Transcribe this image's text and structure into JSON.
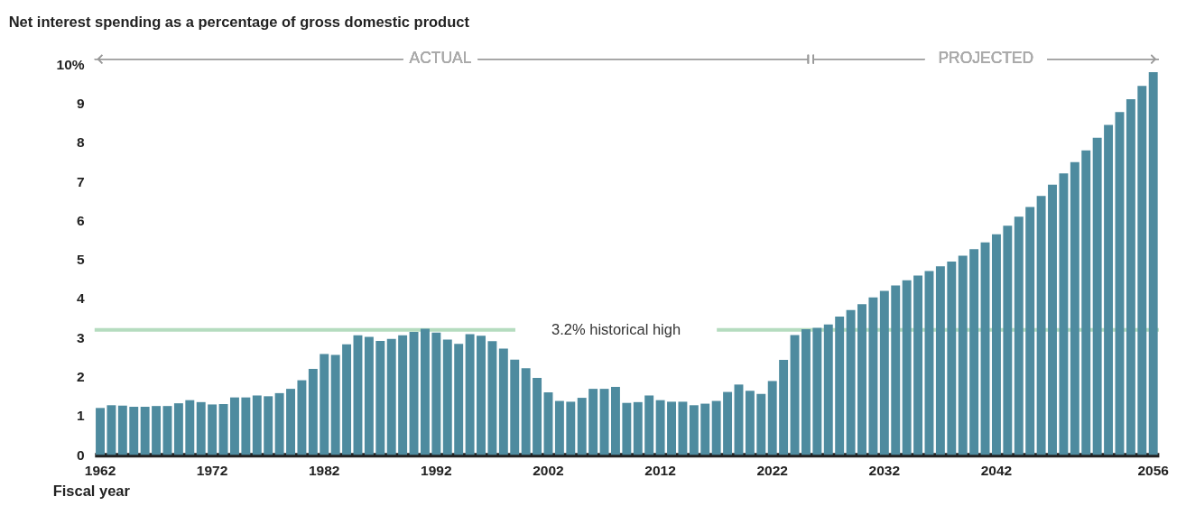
{
  "chart_data": {
    "type": "bar",
    "title": "Net interest spending as a percentage of gross domestic product",
    "xlabel": "Fiscal year",
    "categories": [
      "1962",
      null,
      null,
      null,
      null,
      null,
      null,
      null,
      null,
      null,
      "1972",
      null,
      null,
      null,
      null,
      null,
      null,
      null,
      null,
      null,
      "1982",
      null,
      null,
      null,
      null,
      null,
      null,
      null,
      null,
      null,
      "1992",
      null,
      null,
      null,
      null,
      null,
      null,
      null,
      null,
      null,
      "2002",
      null,
      null,
      null,
      null,
      null,
      null,
      null,
      null,
      null,
      "2012",
      null,
      null,
      null,
      null,
      null,
      null,
      null,
      null,
      null,
      "2022",
      null,
      null,
      null,
      null,
      null,
      null,
      null,
      null,
      null,
      "2032",
      null,
      null,
      null,
      null,
      null,
      null,
      null,
      null,
      null,
      "2042",
      null,
      null,
      null,
      null,
      null,
      null,
      null,
      null,
      null,
      null,
      null,
      null,
      null,
      "2056"
    ],
    "values": [
      1.2,
      1.27,
      1.26,
      1.23,
      1.23,
      1.25,
      1.25,
      1.32,
      1.4,
      1.35,
      1.29,
      1.3,
      1.47,
      1.47,
      1.52,
      1.5,
      1.58,
      1.69,
      1.91,
      2.2,
      2.58,
      2.56,
      2.83,
      3.06,
      3.02,
      2.92,
      2.97,
      3.06,
      3.15,
      3.23,
      3.13,
      2.95,
      2.84,
      3.09,
      3.05,
      2.91,
      2.72,
      2.44,
      2.22,
      1.97,
      1.6,
      1.38,
      1.36,
      1.46,
      1.69,
      1.69,
      1.74,
      1.33,
      1.35,
      1.52,
      1.4,
      1.36,
      1.36,
      1.27,
      1.31,
      1.38,
      1.61,
      1.8,
      1.64,
      1.56,
      1.89,
      2.43,
      3.07,
      3.22,
      3.25,
      3.34,
      3.54,
      3.71,
      3.86,
      4.03,
      4.2,
      4.34,
      4.47,
      4.59,
      4.71,
      4.83,
      4.95,
      5.1,
      5.27,
      5.44,
      5.65,
      5.87,
      6.1,
      6.35,
      6.63,
      6.92,
      7.21,
      7.5,
      7.8,
      8.12,
      8.45,
      8.78,
      9.11,
      9.45,
      9.8
    ],
    "color": "#4e8b9f",
    "ylim": [
      0,
      10
    ],
    "yticks": [
      0,
      1,
      2,
      3,
      4,
      5,
      6,
      7,
      8,
      9,
      {
        "value": 10,
        "label": "10%"
      }
    ],
    "grid": false,
    "ref_lines": [
      {
        "axis": "y",
        "value": 3.2,
        "label": "3.2% historical high",
        "color": "#b5dcbf"
      }
    ],
    "annotations": [
      "ACTUAL",
      "PROJECTED"
    ]
  }
}
